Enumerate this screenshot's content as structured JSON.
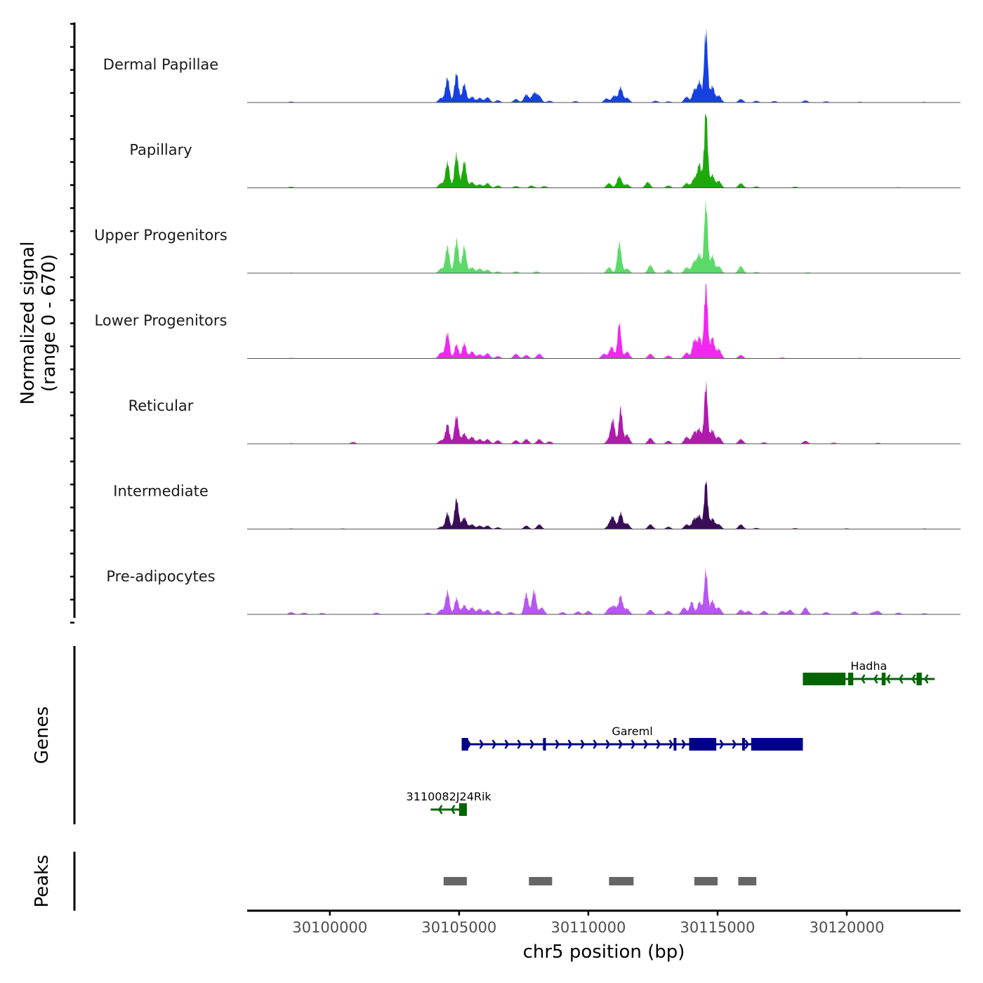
{
  "chart_data": {
    "type": "area",
    "ylabel": "Normalized signal",
    "ylabel_range": "(range 0 - 670)",
    "ylim": [
      0,
      670
    ],
    "xlabel": "chr5 position (bp)",
    "xlim": [
      30096800,
      30124400
    ],
    "xticks": [
      30100000,
      30105000,
      30110000,
      30115000,
      30120000
    ],
    "xtick_labels": [
      "30100000",
      "30105000",
      "30110000",
      "30115000",
      "30120000"
    ],
    "series": [
      {
        "name": "Dermal Papillae",
        "color": "#1641e0",
        "peaks": [
          [
            30098500,
            8
          ],
          [
            30104300,
            40
          ],
          [
            30104550,
            210
          ],
          [
            30104900,
            250
          ],
          [
            30105200,
            160
          ],
          [
            30105500,
            50
          ],
          [
            30105800,
            40
          ],
          [
            30106100,
            45
          ],
          [
            30106500,
            20
          ],
          [
            30107200,
            30
          ],
          [
            30107600,
            70
          ],
          [
            30107900,
            80
          ],
          [
            30108100,
            55
          ],
          [
            30108500,
            15
          ],
          [
            30109500,
            12
          ],
          [
            30110700,
            35
          ],
          [
            30111000,
            60
          ],
          [
            30111250,
            130
          ],
          [
            30111500,
            40
          ],
          [
            30112600,
            15
          ],
          [
            30113100,
            10
          ],
          [
            30113800,
            50
          ],
          [
            30114100,
            110
          ],
          [
            30114300,
            180
          ],
          [
            30114550,
            640
          ],
          [
            30114800,
            140
          ],
          [
            30115050,
            60
          ],
          [
            30115900,
            30
          ],
          [
            30116500,
            15
          ],
          [
            30117200,
            12
          ],
          [
            30118400,
            18
          ],
          [
            30119200,
            10
          ],
          [
            30120500,
            6
          ],
          [
            30123000,
            5
          ]
        ]
      },
      {
        "name": "Papillary",
        "color": "#1ea80c",
        "peaks": [
          [
            30098500,
            10
          ],
          [
            30104300,
            40
          ],
          [
            30104550,
            220
          ],
          [
            30104900,
            290
          ],
          [
            30105200,
            230
          ],
          [
            30105500,
            50
          ],
          [
            30105800,
            30
          ],
          [
            30106100,
            40
          ],
          [
            30106500,
            20
          ],
          [
            30107200,
            15
          ],
          [
            30107800,
            20
          ],
          [
            30108300,
            15
          ],
          [
            30110800,
            40
          ],
          [
            30111200,
            100
          ],
          [
            30111500,
            30
          ],
          [
            30112300,
            50
          ],
          [
            30113100,
            20
          ],
          [
            30113800,
            40
          ],
          [
            30114100,
            80
          ],
          [
            30114300,
            200
          ],
          [
            30114550,
            670
          ],
          [
            30114800,
            110
          ],
          [
            30115050,
            60
          ],
          [
            30115900,
            40
          ],
          [
            30116500,
            12
          ],
          [
            30118000,
            10
          ],
          [
            30122000,
            5
          ]
        ]
      },
      {
        "name": "Upper Progenitors",
        "color": "#5dd969",
        "peaks": [
          [
            30098500,
            5
          ],
          [
            30104300,
            40
          ],
          [
            30104550,
            230
          ],
          [
            30104900,
            290
          ],
          [
            30105200,
            230
          ],
          [
            30105500,
            50
          ],
          [
            30105800,
            40
          ],
          [
            30106100,
            30
          ],
          [
            30106500,
            15
          ],
          [
            30107200,
            15
          ],
          [
            30108000,
            15
          ],
          [
            30110800,
            50
          ],
          [
            30111200,
            260
          ],
          [
            30111500,
            40
          ],
          [
            30112400,
            70
          ],
          [
            30113100,
            30
          ],
          [
            30113800,
            50
          ],
          [
            30114100,
            100
          ],
          [
            30114300,
            160
          ],
          [
            30114550,
            620
          ],
          [
            30114800,
            150
          ],
          [
            30115050,
            60
          ],
          [
            30115900,
            60
          ],
          [
            30116500,
            10
          ],
          [
            30118500,
            8
          ]
        ]
      },
      {
        "name": "Lower Progenitors",
        "color": "#f227f2",
        "peaks": [
          [
            30098500,
            5
          ],
          [
            30104300,
            50
          ],
          [
            30104550,
            220
          ],
          [
            30104900,
            120
          ],
          [
            30105200,
            130
          ],
          [
            30105500,
            60
          ],
          [
            30105800,
            35
          ],
          [
            30106100,
            45
          ],
          [
            30106500,
            20
          ],
          [
            30107200,
            40
          ],
          [
            30107600,
            30
          ],
          [
            30108100,
            40
          ],
          [
            30110600,
            40
          ],
          [
            30110900,
            100
          ],
          [
            30111200,
            310
          ],
          [
            30111500,
            60
          ],
          [
            30112400,
            40
          ],
          [
            30113100,
            25
          ],
          [
            30113800,
            50
          ],
          [
            30114100,
            160
          ],
          [
            30114300,
            180
          ],
          [
            30114550,
            650
          ],
          [
            30114800,
            180
          ],
          [
            30115050,
            80
          ],
          [
            30115900,
            30
          ],
          [
            30117500,
            8
          ],
          [
            30120500,
            5
          ]
        ]
      },
      {
        "name": "Reticular",
        "color": "#b01aad",
        "peaks": [
          [
            30098500,
            5
          ],
          [
            30100900,
            15
          ],
          [
            30104300,
            30
          ],
          [
            30104550,
            170
          ],
          [
            30104900,
            240
          ],
          [
            30105200,
            90
          ],
          [
            30105500,
            60
          ],
          [
            30105800,
            40
          ],
          [
            30106100,
            40
          ],
          [
            30106500,
            30
          ],
          [
            30107200,
            30
          ],
          [
            30107600,
            40
          ],
          [
            30108100,
            40
          ],
          [
            30108500,
            20
          ],
          [
            30110800,
            40
          ],
          [
            30110950,
            200
          ],
          [
            30111250,
            310
          ],
          [
            30111500,
            80
          ],
          [
            30112400,
            50
          ],
          [
            30113100,
            25
          ],
          [
            30113800,
            60
          ],
          [
            30114100,
            100
          ],
          [
            30114300,
            120
          ],
          [
            30114550,
            510
          ],
          [
            30114800,
            120
          ],
          [
            30115050,
            60
          ],
          [
            30115900,
            40
          ],
          [
            30116800,
            12
          ],
          [
            30118400,
            25
          ],
          [
            30119500,
            10
          ],
          [
            30121200,
            8
          ]
        ]
      },
      {
        "name": "Intermediate",
        "color": "#3a0d57",
        "peaks": [
          [
            30098500,
            5
          ],
          [
            30100500,
            5
          ],
          [
            30104300,
            20
          ],
          [
            30104550,
            140
          ],
          [
            30104900,
            260
          ],
          [
            30105200,
            100
          ],
          [
            30105500,
            40
          ],
          [
            30105800,
            30
          ],
          [
            30106100,
            30
          ],
          [
            30106500,
            15
          ],
          [
            30107600,
            30
          ],
          [
            30108100,
            40
          ],
          [
            30110800,
            30
          ],
          [
            30110950,
            100
          ],
          [
            30111250,
            140
          ],
          [
            30111500,
            50
          ],
          [
            30112400,
            40
          ],
          [
            30113100,
            20
          ],
          [
            30113800,
            40
          ],
          [
            30114100,
            90
          ],
          [
            30114300,
            110
          ],
          [
            30114550,
            420
          ],
          [
            30114800,
            90
          ],
          [
            30115050,
            40
          ],
          [
            30115900,
            40
          ],
          [
            30116500,
            10
          ],
          [
            30118000,
            8
          ],
          [
            30120000,
            6
          ],
          [
            30123000,
            5
          ]
        ]
      },
      {
        "name": "Pre-adipocytes",
        "color": "#b856f2",
        "peaks": [
          [
            30098500,
            20
          ],
          [
            30099000,
            15
          ],
          [
            30099700,
            12
          ],
          [
            30101800,
            15
          ],
          [
            30103800,
            15
          ],
          [
            30104300,
            40
          ],
          [
            30104550,
            200
          ],
          [
            30104900,
            140
          ],
          [
            30105200,
            80
          ],
          [
            30105500,
            60
          ],
          [
            30105800,
            50
          ],
          [
            30106100,
            40
          ],
          [
            30106500,
            30
          ],
          [
            30107000,
            20
          ],
          [
            30107600,
            180
          ],
          [
            30107900,
            210
          ],
          [
            30108200,
            60
          ],
          [
            30109000,
            20
          ],
          [
            30109600,
            25
          ],
          [
            30110000,
            30
          ],
          [
            30110800,
            50
          ],
          [
            30111000,
            70
          ],
          [
            30111250,
            160
          ],
          [
            30111500,
            50
          ],
          [
            30112400,
            40
          ],
          [
            30113100,
            30
          ],
          [
            30113700,
            60
          ],
          [
            30114000,
            110
          ],
          [
            30114300,
            110
          ],
          [
            30114550,
            380
          ],
          [
            30114800,
            120
          ],
          [
            30115050,
            60
          ],
          [
            30115900,
            40
          ],
          [
            30116200,
            30
          ],
          [
            30116800,
            30
          ],
          [
            30117500,
            30
          ],
          [
            30117800,
            40
          ],
          [
            30118400,
            60
          ],
          [
            30119200,
            20
          ],
          [
            30120300,
            25
          ],
          [
            30121000,
            15
          ],
          [
            30121200,
            30
          ],
          [
            30122000,
            15
          ],
          [
            30123000,
            10
          ]
        ]
      }
    ],
    "genes": [
      {
        "name": "Hadha",
        "strand": "-",
        "color": "#006400",
        "start": 30118300,
        "end": 30123400,
        "exons": [
          [
            30118300,
            30119950
          ],
          [
            30120050,
            30120250
          ],
          [
            30121350,
            30121500
          ],
          [
            30122700,
            30122900
          ]
        ]
      },
      {
        "name": "Gareml",
        "strand": "+",
        "color": "#00008b",
        "start": 30105100,
        "end": 30118300,
        "exons": [
          [
            30105100,
            30105350
          ],
          [
            30108250,
            30108350
          ],
          [
            30113300,
            30113400
          ],
          [
            30113900,
            30114950
          ],
          [
            30115950,
            30116050
          ],
          [
            30116300,
            30118300
          ]
        ]
      },
      {
        "name": "3110082J24Rik",
        "strand": "-",
        "color": "#006400",
        "start": 30103900,
        "end": 30105300,
        "exons": [
          [
            30105000,
            30105300
          ]
        ]
      }
    ],
    "peaks_track": [
      [
        30104400,
        30105300
      ],
      [
        30107700,
        30108600
      ],
      [
        30110800,
        30111750
      ],
      [
        30114100,
        30115000
      ],
      [
        30115800,
        30116500
      ]
    ],
    "track_labels": {
      "genes": "Genes",
      "peaks": "Peaks"
    }
  }
}
